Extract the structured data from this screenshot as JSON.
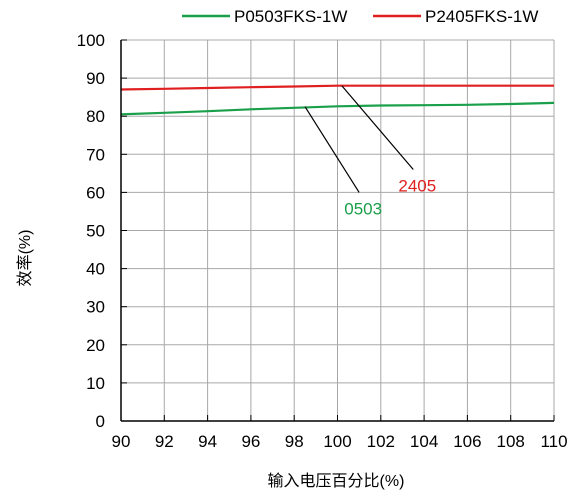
{
  "chart_data": {
    "type": "line",
    "title": "",
    "xlabel": "输入电压百分比(%)",
    "ylabel": "效率(%)",
    "xlim": [
      90,
      110
    ],
    "ylim": [
      0,
      100
    ],
    "x_ticks": [
      "90",
      "92",
      "94",
      "96",
      "98",
      "100",
      "102",
      "104",
      "106",
      "108",
      "110"
    ],
    "y_ticks": [
      "0",
      "10",
      "20",
      "30",
      "40",
      "50",
      "60",
      "70",
      "80",
      "90",
      "100"
    ],
    "grid": true,
    "legend_position": "top",
    "series": [
      {
        "name": "P0503FKS-1W",
        "color": "#1aa04a",
        "x": [
          90,
          92,
          94,
          96,
          98,
          100,
          102,
          104,
          106,
          108,
          110
        ],
        "values": [
          80.5,
          80.9,
          81.3,
          81.8,
          82.2,
          82.6,
          82.8,
          82.9,
          83.0,
          83.2,
          83.5
        ]
      },
      {
        "name": "P2405FKS-1W",
        "color": "#e02020",
        "x": [
          90,
          92,
          94,
          96,
          98,
          100,
          102,
          104,
          106,
          108,
          110
        ],
        "values": [
          87.0,
          87.2,
          87.4,
          87.6,
          87.8,
          88.0,
          88.0,
          88.0,
          88.0,
          88.0,
          88.0
        ]
      }
    ],
    "annotations": [
      {
        "text": "0503",
        "color": "#1aa04a",
        "target_x": 98.5,
        "target_y": 82.5,
        "label_x": 101.0,
        "label_y": 60.0
      },
      {
        "text": "2405",
        "color": "#e02020",
        "target_x": 100.2,
        "target_y": 88.0,
        "label_x": 103.5,
        "label_y": 66.0
      }
    ]
  }
}
